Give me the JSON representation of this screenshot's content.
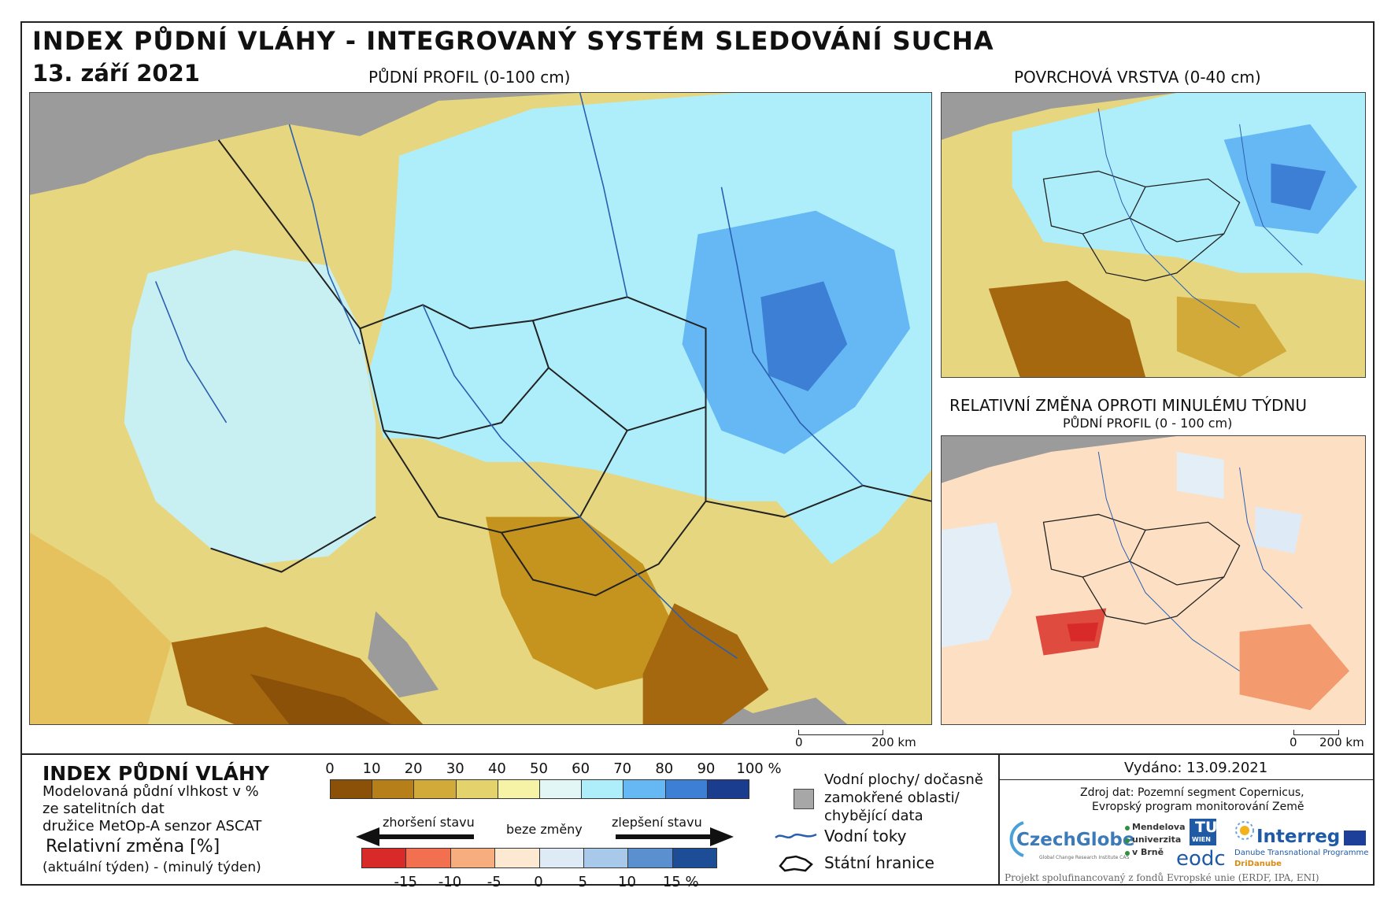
{
  "header": {
    "title": "INDEX PŮDNÍ VLÁHY - INTEGROVANÝ SYSTÉM SLEDOVÁNÍ SUCHA",
    "date": "13. září 2021"
  },
  "maps": {
    "main": {
      "subtitle": "PŮDNÍ PROFIL (0-100 cm)"
    },
    "surface": {
      "subtitle": "POVRCHOVÁ VRSTVA (0-40 cm)"
    },
    "change": {
      "subtitle": "RELATIVNÍ ZMĚNA OPROTI MINULÉMU TÝDNU",
      "subtitle2": "PŮDNÍ PROFIL (0 - 100 cm)"
    }
  },
  "scalebar": {
    "zero": "0",
    "distance": "200 km"
  },
  "legend": {
    "index_title": "INDEX PŮDNÍ VLÁHY",
    "index_desc_1": "Modelovaná půdní vlhkost v %",
    "index_desc_2": "ze satelitních dat",
    "index_desc_3": "družice MetOp-A senzor ASCAT",
    "change_title": "Relativní změna [%]",
    "change_desc": "(aktuální týden) - (minulý týden)",
    "index_ticks": [
      "0",
      "10",
      "20",
      "30",
      "40",
      "50",
      "60",
      "70",
      "80",
      "90",
      "100 %"
    ],
    "index_colors": [
      "#8c5109",
      "#b77f19",
      "#d1aa3a",
      "#e4d36c",
      "#f7f3a6",
      "#e2f7f5",
      "#aeeefa",
      "#66b8f5",
      "#3e7fd6",
      "#1a3d8f"
    ],
    "change_colors": [
      "#d92a2a",
      "#f26f4f",
      "#f7ad7d",
      "#fde9d2",
      "#deeaf5",
      "#a9c9ea",
      "#5a8fd0",
      "#1d4d97"
    ],
    "change_ticks": [
      "-15",
      "-10",
      "-5",
      "0",
      "5",
      "10",
      "15 %"
    ],
    "worse": "zhoršení stavu",
    "no_change": "beze změny",
    "better": "zlepšení stavu",
    "water_line1": "Vodní plochy/ dočasně",
    "water_line2": "zamokřené oblasti/",
    "water_line3": "chybějící data",
    "rivers": "Vodní toky",
    "borders": "Státní hranice"
  },
  "footer": {
    "issued": "Vydáno: 13.09.2021",
    "source_1": "Zdroj dat: Pozemní segment Copernicus,",
    "source_2": "Evropský program monitorování Země",
    "czechglobe": "CzechGlobe",
    "czechglobe_sub": "Global Change Research Institute CAS",
    "mendel_1": "Mendelova",
    "mendel_2": "univerzita",
    "mendel_3": "v Brně",
    "tuwien_1": "TU",
    "tuwien_2": "WIEN",
    "eodc": "eodc",
    "interreg": "Interreg",
    "interreg_sub": "Danube Transnational Programme",
    "dridanube": "DriDanube",
    "project": "Projekt spolufinancovaný z fondů Evropské unie (ERDF, IPA, ENI)"
  }
}
